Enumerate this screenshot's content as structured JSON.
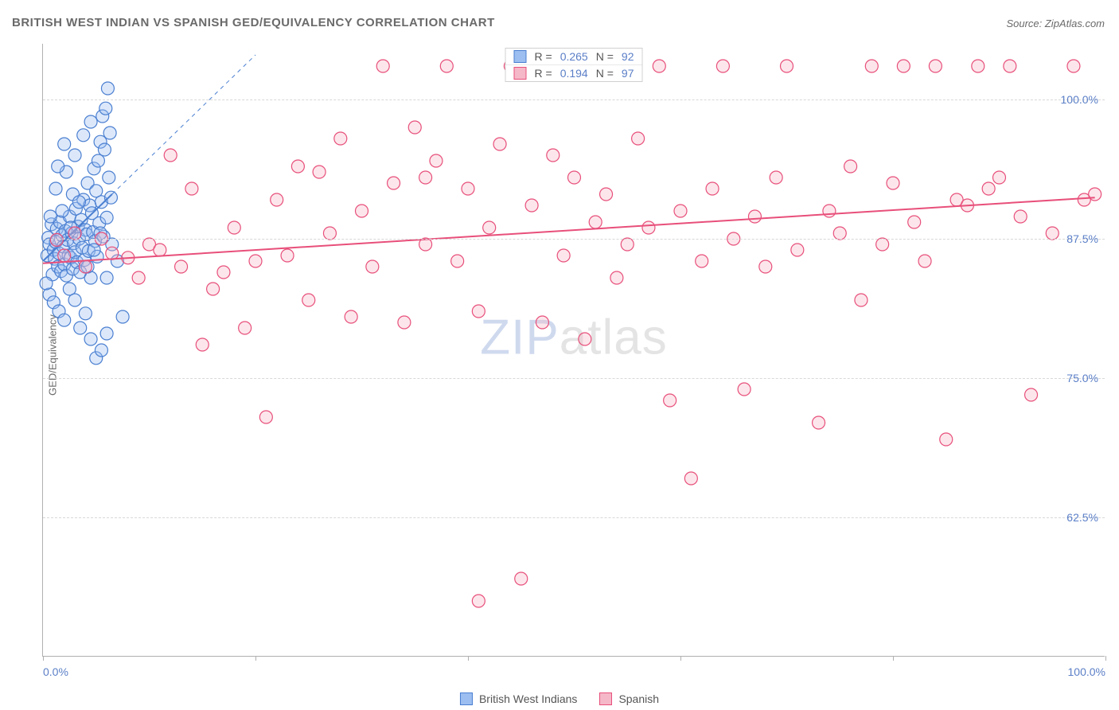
{
  "title": "BRITISH WEST INDIAN VS SPANISH GED/EQUIVALENCY CORRELATION CHART",
  "source": "Source: ZipAtlas.com",
  "yaxis_label": "GED/Equivalency",
  "watermark_a": "ZIP",
  "watermark_b": "atlas",
  "chart": {
    "type": "scatter",
    "xlim": [
      0,
      100
    ],
    "ylim": [
      50,
      105
    ],
    "ytick_labels": [
      "62.5%",
      "75.0%",
      "87.5%",
      "100.0%"
    ],
    "ytick_values": [
      62.5,
      75.0,
      87.5,
      100.0
    ],
    "xtick_values": [
      0,
      20,
      40,
      60,
      80,
      100
    ],
    "xtick_label_min": "0.0%",
    "xtick_label_max": "100.0%",
    "grid_color": "#d8d8d8",
    "axis_color": "#b0b0b0",
    "label_color": "#5b7fc7",
    "marker_radius": 8,
    "marker_stroke_width": 1.2,
    "trend_line_width": 2,
    "trend_dash_width": 1,
    "series": [
      {
        "key": "bwi",
        "name": "British West Indians",
        "color_fill": "#9cbef0",
        "color_stroke": "#4a7fd1",
        "fill_opacity": 0.35,
        "r_label": "R =",
        "r_value": "0.265",
        "n_label": "N =",
        "n_value": "92",
        "trend": {
          "x1": 0,
          "y1": 85.5,
          "x2": 6.5,
          "y2": 91.5,
          "dash_x2": 20,
          "dash_y2": 104
        },
        "points": [
          [
            0.4,
            86
          ],
          [
            0.5,
            87.6
          ],
          [
            0.6,
            87
          ],
          [
            0.8,
            88.8
          ],
          [
            0.9,
            84.3
          ],
          [
            1.0,
            86.5
          ],
          [
            1.1,
            85.7
          ],
          [
            1.2,
            87.2
          ],
          [
            1.3,
            88.4
          ],
          [
            1.4,
            85
          ],
          [
            1.5,
            86.2
          ],
          [
            1.6,
            89
          ],
          [
            1.7,
            84.6
          ],
          [
            1.8,
            87.8
          ],
          [
            1.9,
            86.8
          ],
          [
            2.0,
            85.2
          ],
          [
            2.1,
            88.2
          ],
          [
            2.2,
            84.2
          ],
          [
            2.3,
            87.4
          ],
          [
            2.4,
            86
          ],
          [
            2.5,
            89.5
          ],
          [
            2.6,
            85.8
          ],
          [
            2.7,
            88
          ],
          [
            2.8,
            84.8
          ],
          [
            2.9,
            87.1
          ],
          [
            3.0,
            86.3
          ],
          [
            3.1,
            90.2
          ],
          [
            3.2,
            85.4
          ],
          [
            3.3,
            88.6
          ],
          [
            3.4,
            87.5
          ],
          [
            3.5,
            84.5
          ],
          [
            3.6,
            89.2
          ],
          [
            3.7,
            86.7
          ],
          [
            3.8,
            91
          ],
          [
            3.9,
            85.6
          ],
          [
            4.0,
            88.3
          ],
          [
            4.1,
            87.9
          ],
          [
            4.2,
            92.5
          ],
          [
            4.3,
            86.4
          ],
          [
            4.4,
            90.5
          ],
          [
            4.5,
            84
          ],
          [
            4.6,
            89.8
          ],
          [
            4.7,
            88.1
          ],
          [
            4.8,
            93.8
          ],
          [
            4.9,
            87.3
          ],
          [
            5.0,
            91.8
          ],
          [
            5.1,
            85.9
          ],
          [
            5.2,
            94.5
          ],
          [
            5.3,
            88.9
          ],
          [
            5.4,
            96.2
          ],
          [
            5.5,
            90.8
          ],
          [
            5.6,
            98.5
          ],
          [
            5.7,
            87.7
          ],
          [
            5.8,
            95.5
          ],
          [
            5.9,
            99.2
          ],
          [
            6.0,
            89.4
          ],
          [
            6.1,
            101
          ],
          [
            6.2,
            93
          ],
          [
            6.3,
            97
          ],
          [
            6.4,
            91.2
          ],
          [
            0.6,
            82.5
          ],
          [
            1.0,
            81.8
          ],
          [
            1.5,
            81
          ],
          [
            2.0,
            80.2
          ],
          [
            2.5,
            83
          ],
          [
            3.0,
            82
          ],
          [
            3.5,
            79.5
          ],
          [
            4.0,
            80.8
          ],
          [
            4.5,
            78.5
          ],
          [
            5.0,
            76.8
          ],
          [
            5.5,
            77.5
          ],
          [
            6.0,
            79
          ],
          [
            1.2,
            92
          ],
          [
            2.2,
            93.5
          ],
          [
            3.0,
            95
          ],
          [
            3.8,
            96.8
          ],
          [
            4.5,
            98
          ],
          [
            1.8,
            90
          ],
          [
            2.8,
            91.5
          ],
          [
            0.3,
            83.5
          ],
          [
            0.7,
            89.5
          ],
          [
            1.4,
            94
          ],
          [
            2.0,
            96
          ],
          [
            2.6,
            88.5
          ],
          [
            3.4,
            90.8
          ],
          [
            4.2,
            85
          ],
          [
            4.8,
            86.5
          ],
          [
            5.4,
            88
          ],
          [
            6.0,
            84
          ],
          [
            6.5,
            87
          ],
          [
            7.0,
            85.5
          ],
          [
            7.5,
            80.5
          ]
        ]
      },
      {
        "key": "spanish",
        "name": "Spanish",
        "color_fill": "#f5b8c8",
        "color_stroke": "#e84f7a",
        "fill_opacity": 0.35,
        "r_label": "R =",
        "r_value": "0.194",
        "n_label": "N =",
        "n_value": "97",
        "trend": {
          "x1": 0,
          "y1": 85.3,
          "x2": 99,
          "y2": 91.2
        },
        "points": [
          [
            1.3,
            87.4
          ],
          [
            2,
            86
          ],
          [
            3,
            88
          ],
          [
            4,
            85
          ],
          [
            5.5,
            87.5
          ],
          [
            6.5,
            86.2
          ],
          [
            8,
            85.8
          ],
          [
            9,
            84
          ],
          [
            10,
            87
          ],
          [
            11,
            86.5
          ],
          [
            12,
            95
          ],
          [
            13,
            85
          ],
          [
            14,
            92
          ],
          [
            15,
            78
          ],
          [
            16,
            83
          ],
          [
            17,
            84.5
          ],
          [
            18,
            88.5
          ],
          [
            19,
            79.5
          ],
          [
            20,
            85.5
          ],
          [
            21,
            71.5
          ],
          [
            22,
            91
          ],
          [
            23,
            86
          ],
          [
            24,
            94
          ],
          [
            25,
            82
          ],
          [
            26,
            93.5
          ],
          [
            27,
            88
          ],
          [
            28,
            96.5
          ],
          [
            29,
            80.5
          ],
          [
            30,
            90
          ],
          [
            31,
            85
          ],
          [
            32,
            103
          ],
          [
            33,
            92.5
          ],
          [
            34,
            80
          ],
          [
            35,
            97.5
          ],
          [
            36,
            93
          ],
          [
            36,
            87
          ],
          [
            37,
            94.5
          ],
          [
            38,
            103
          ],
          [
            39,
            85.5
          ],
          [
            40,
            92
          ],
          [
            41,
            81
          ],
          [
            41,
            55
          ],
          [
            42,
            88.5
          ],
          [
            43,
            96
          ],
          [
            44,
            103
          ],
          [
            45,
            57
          ],
          [
            46,
            90.5
          ],
          [
            47,
            80
          ],
          [
            48,
            95
          ],
          [
            49,
            86
          ],
          [
            50,
            93
          ],
          [
            51,
            78.5
          ],
          [
            52,
            89
          ],
          [
            53,
            91.5
          ],
          [
            54,
            84
          ],
          [
            55,
            87
          ],
          [
            56,
            96.5
          ],
          [
            57,
            88.5
          ],
          [
            58,
            103
          ],
          [
            59,
            73
          ],
          [
            60,
            90
          ],
          [
            61,
            66
          ],
          [
            62,
            85.5
          ],
          [
            63,
            92
          ],
          [
            64,
            103
          ],
          [
            65,
            87.5
          ],
          [
            66,
            74
          ],
          [
            67,
            89.5
          ],
          [
            68,
            85
          ],
          [
            69,
            93
          ],
          [
            70,
            103
          ],
          [
            71,
            86.5
          ],
          [
            73,
            71
          ],
          [
            74,
            90
          ],
          [
            75,
            88
          ],
          [
            76,
            94
          ],
          [
            77,
            82
          ],
          [
            78,
            103
          ],
          [
            79,
            87
          ],
          [
            80,
            92.5
          ],
          [
            81,
            103
          ],
          [
            82,
            89
          ],
          [
            83,
            85.5
          ],
          [
            84,
            103
          ],
          [
            85,
            69.5
          ],
          [
            86,
            91
          ],
          [
            87,
            90.5
          ],
          [
            88,
            103
          ],
          [
            89,
            92
          ],
          [
            90,
            93
          ],
          [
            91,
            103
          ],
          [
            92,
            89.5
          ],
          [
            93,
            73.5
          ],
          [
            95,
            88
          ],
          [
            97,
            103
          ],
          [
            98,
            91
          ],
          [
            99,
            91.5
          ]
        ]
      }
    ]
  },
  "legend_bottom": [
    {
      "label": "British West Indians",
      "fill": "#9cbef0",
      "stroke": "#4a7fd1"
    },
    {
      "label": "Spanish",
      "fill": "#f5b8c8",
      "stroke": "#e84f7a"
    }
  ]
}
